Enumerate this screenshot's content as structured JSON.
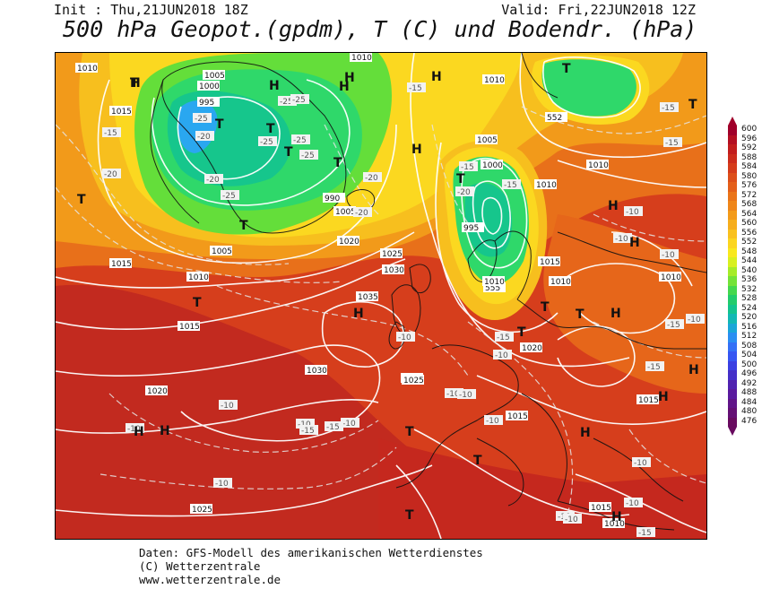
{
  "header": {
    "init": "Init : Thu,21JUN2018 18Z",
    "valid": "Valid: Fri,22JUN2018 12Z",
    "title": "500 hPa Geopot.(gpdm), T (C) und Bodendr. (hPa)"
  },
  "footer": {
    "line1": "Daten: GFS-Modell des amerikanischen Wetterdienstes",
    "line2": "(C) Wetterzentrale",
    "line3": "www.wetterzentrale.de"
  },
  "legend": {
    "values": [
      "600",
      "596",
      "592",
      "588",
      "584",
      "580",
      "576",
      "572",
      "568",
      "564",
      "560",
      "556",
      "552",
      "548",
      "544",
      "540",
      "536",
      "532",
      "528",
      "524",
      "520",
      "516",
      "512",
      "508",
      "504",
      "500",
      "496",
      "492",
      "488",
      "484",
      "480",
      "476"
    ],
    "colors": [
      "#a0002a",
      "#b40f22",
      "#c21d1d",
      "#cc2c1c",
      "#d53c1b",
      "#dd4f1a",
      "#e45f1a",
      "#ea7419",
      "#ef861a",
      "#f39b1a",
      "#f6ae1d",
      "#f9c11f",
      "#fbd520",
      "#f8e81e",
      "#d8f020",
      "#a6ec28",
      "#74e338",
      "#44d84e",
      "#22cc6c",
      "#13c48e",
      "#12b8b4",
      "#1aa6d8",
      "#2a8ef2",
      "#3470f6",
      "#3656f2",
      "#3a40e2",
      "#4530c8",
      "#5022b0",
      "#5a1a9e",
      "#601488",
      "#640f74",
      "#680a5f"
    ]
  },
  "pressure_labels": [
    "1010",
    "1015",
    "1005",
    "1000",
    "995",
    "990",
    "1020",
    "1025",
    "1030",
    "1035",
    "555",
    "552",
    "1015",
    "1010",
    "1005",
    "1000",
    "995",
    "1020",
    "1025",
    "1030",
    "1015",
    "1010",
    "1025",
    "1015",
    "1025",
    "1010",
    "1005",
    "1010",
    "1015",
    "1010",
    "1010",
    "1015",
    "1010",
    "1020",
    "1010",
    "1015",
    "1010",
    "1005"
  ],
  "temp_labels": [
    "-15",
    "-20",
    "-25",
    "-25",
    "-25",
    "-25",
    "-25",
    "-20",
    "-20",
    "-20",
    "-20",
    "-15",
    "-15",
    "-20",
    "-25",
    "-25",
    "-15",
    "-15",
    "-20",
    "-15",
    "-10",
    "-10",
    "-10",
    "-15",
    "-15",
    "-10",
    "-10",
    "-10",
    "-10",
    "-10",
    "-10",
    "-10",
    "-10",
    "-15",
    "-10",
    "-15",
    "-15",
    "-10",
    "-10",
    "-10",
    "-10",
    "-10",
    "-15",
    "-10"
  ],
  "system_letters": [
    "H",
    "H",
    "H",
    "H",
    "H",
    "H",
    "H",
    "H",
    "H",
    "H",
    "H",
    "H",
    "H",
    "H",
    "H",
    "H",
    "T",
    "T",
    "T",
    "T",
    "T",
    "T",
    "T",
    "T",
    "T",
    "T",
    "T",
    "T",
    "T",
    "T",
    "T",
    "T",
    "T"
  ]
}
